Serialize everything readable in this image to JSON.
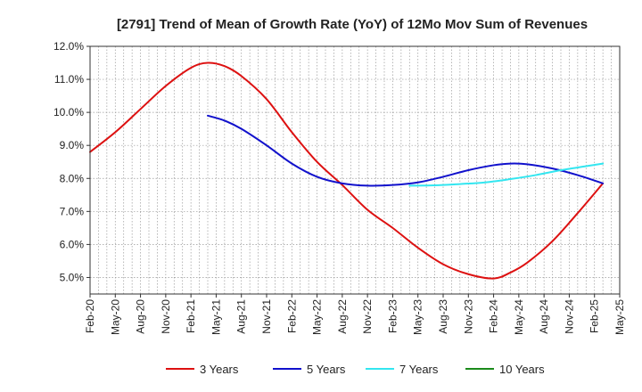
{
  "chart_data": {
    "type": "line",
    "title": "[2791]  Trend of Mean of Growth Rate (YoY) of 12Mo Mov Sum of Revenues",
    "xlabel": "",
    "ylabel": "",
    "ylim": [
      4.5,
      12.0
    ],
    "yticks": [
      5.0,
      6.0,
      7.0,
      8.0,
      9.0,
      10.0,
      11.0,
      12.0
    ],
    "ytick_labels": [
      "5.0%",
      "6.0%",
      "7.0%",
      "8.0%",
      "9.0%",
      "10.0%",
      "11.0%",
      "12.0%"
    ],
    "x_tick_labels": [
      "Feb-20",
      "May-20",
      "Aug-20",
      "Nov-20",
      "Feb-21",
      "May-21",
      "Aug-21",
      "Nov-21",
      "Feb-22",
      "May-22",
      "Aug-22",
      "Nov-22",
      "Feb-23",
      "May-23",
      "Aug-23",
      "Nov-23",
      "Feb-24",
      "May-24",
      "Aug-24",
      "Nov-24",
      "Feb-25",
      "May-25"
    ],
    "x_range_months": [
      0,
      63
    ],
    "grid": true,
    "legend_position": "bottom",
    "series": [
      {
        "name": "3 Years",
        "color": "#dd1111",
        "x_months": [
          0,
          3,
          6,
          9,
          12,
          14,
          16,
          18,
          21,
          24,
          27,
          30,
          33,
          36,
          39,
          42,
          45,
          48,
          50,
          52,
          55,
          58,
          61
        ],
        "values": [
          8.8,
          9.4,
          10.1,
          10.8,
          11.35,
          11.5,
          11.4,
          11.1,
          10.4,
          9.4,
          8.5,
          7.8,
          7.05,
          6.5,
          5.9,
          5.4,
          5.1,
          4.97,
          5.15,
          5.45,
          6.1,
          6.95,
          7.85
        ]
      },
      {
        "name": "5 Years",
        "color": "#1111cc",
        "x_months": [
          14,
          16,
          18,
          21,
          24,
          27,
          30,
          33,
          36,
          39,
          42,
          45,
          48,
          50,
          52,
          55,
          58,
          61
        ],
        "values": [
          9.9,
          9.75,
          9.5,
          9.0,
          8.45,
          8.05,
          7.85,
          7.78,
          7.8,
          7.88,
          8.05,
          8.25,
          8.4,
          8.45,
          8.43,
          8.3,
          8.1,
          7.85
        ]
      },
      {
        "name": "7 Years",
        "color": "#33e6f0",
        "x_months": [
          38,
          41,
          44,
          47,
          50,
          53,
          56,
          59,
          61
        ],
        "values": [
          7.78,
          7.79,
          7.83,
          7.88,
          7.98,
          8.1,
          8.25,
          8.37,
          8.45
        ]
      },
      {
        "name": "10 Years",
        "color": "#1a8a1a",
        "x_months": [],
        "values": []
      }
    ]
  }
}
